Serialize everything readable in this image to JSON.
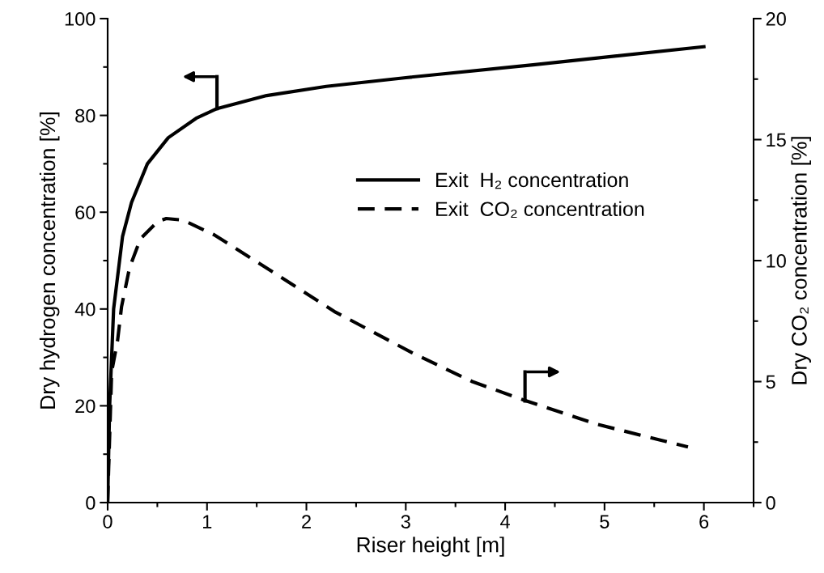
{
  "chart_data": {
    "type": "line",
    "xlabel": "Riser height [m]",
    "ylabel": "Dry hydrogen concentration [%]",
    "y2label": "Dry CO₂ concentration [%]",
    "xlim": [
      0,
      6.5
    ],
    "xticks": [
      0,
      {
        "value": 0.5,
        "label": null
      },
      1,
      {
        "value": 1.5,
        "label": null
      },
      2,
      {
        "value": 2.5,
        "label": null
      },
      3,
      {
        "value": 3.5,
        "label": null
      },
      4,
      {
        "value": 4.5,
        "label": null
      },
      5,
      {
        "value": 5.5,
        "label": null
      },
      6,
      {
        "value": 6.5,
        "label": null
      }
    ],
    "ylim": [
      0,
      100
    ],
    "yticks": [
      0,
      {
        "value": 10,
        "label": null
      },
      20,
      {
        "value": 30,
        "label": null
      },
      40,
      {
        "value": 50,
        "label": null
      },
      60,
      {
        "value": 70,
        "label": null
      },
      80,
      {
        "value": 90,
        "label": null
      },
      100
    ],
    "y2lim": [
      0,
      20
    ],
    "y2ticks": [
      0,
      {
        "value": 2.5,
        "label": null
      },
      5,
      {
        "value": 7.5,
        "label": null
      },
      10,
      {
        "value": 12.5,
        "label": null
      },
      15,
      {
        "value": 17.5,
        "label": null
      },
      20
    ],
    "grid": false,
    "legend": "top right",
    "series": [
      {
        "name": "Exit  H₂ concentration",
        "color": "#000000",
        "line_style": "solid",
        "x": [
          0,
          0.02,
          0.06,
          0.15,
          0.24,
          0.4,
          0.61,
          0.89,
          1.1,
          1.6,
          2.2,
          3,
          4.3,
          6
        ],
        "values": [
          0,
          20,
          40,
          55,
          62,
          70,
          75.4,
          79.4,
          81.4,
          84.1,
          86,
          87.8,
          90.5,
          94.2
        ]
      },
      {
        "name": "Exit  CO₂ concentration",
        "color": "#000000",
        "line_style": "dashed",
        "axis": "y2",
        "x": [
          0,
          0.01,
          0.04,
          0.1,
          0.14,
          0.22,
          0.33,
          0.5,
          0.59,
          0.76,
          1.07,
          1.52,
          2.28,
          3.06,
          3.67,
          4.18,
          4.92,
          5.84
        ],
        "values": [
          0,
          1.4,
          5.4,
          6.7,
          8.1,
          9.7,
          10.9,
          11.6,
          11.74,
          11.67,
          11.07,
          9.9,
          7.9,
          6.2,
          5.0,
          4.25,
          3.24,
          2.3
        ]
      }
    ]
  }
}
